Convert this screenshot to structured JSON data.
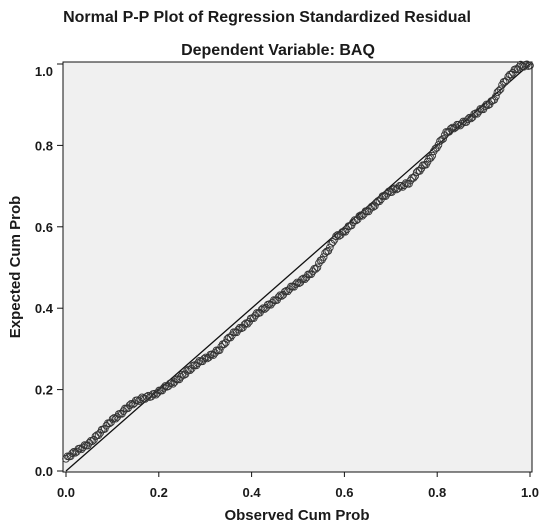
{
  "chart_data": {
    "type": "scatter",
    "title": "Normal P-P Plot of Regression Standardized Residual",
    "subtitle": "Dependent Variable: BAQ",
    "xlabel": "Observed Cum Prob",
    "ylabel": "Expected Cum Prob",
    "xlim": [
      0,
      1
    ],
    "ylim": [
      0,
      1
    ],
    "x_ticks": [
      "0.0",
      "0.2",
      "0.4",
      "0.6",
      "0.8",
      "1.0"
    ],
    "y_ticks": [
      "0.0",
      "0.2",
      "0.4",
      "0.6",
      "0.8",
      "1.0"
    ],
    "grid": false,
    "legend": "none",
    "reference_line": {
      "from": [
        0,
        0
      ],
      "to": [
        1,
        1
      ]
    },
    "colors": {
      "plot_background": "#f0f0f0",
      "marker": "#333333",
      "line": "#111111"
    },
    "curve_points": [
      [
        0.0,
        0.03
      ],
      [
        0.02,
        0.045
      ],
      [
        0.05,
        0.07
      ],
      [
        0.08,
        0.1
      ],
      [
        0.1,
        0.125
      ],
      [
        0.13,
        0.155
      ],
      [
        0.16,
        0.175
      ],
      [
        0.2,
        0.195
      ],
      [
        0.23,
        0.215
      ],
      [
        0.26,
        0.245
      ],
      [
        0.3,
        0.275
      ],
      [
        0.33,
        0.3
      ],
      [
        0.36,
        0.335
      ],
      [
        0.4,
        0.375
      ],
      [
        0.43,
        0.4
      ],
      [
        0.46,
        0.43
      ],
      [
        0.5,
        0.46
      ],
      [
        0.54,
        0.5
      ],
      [
        0.57,
        0.55
      ],
      [
        0.58,
        0.575
      ],
      [
        0.6,
        0.59
      ],
      [
        0.64,
        0.63
      ],
      [
        0.68,
        0.67
      ],
      [
        0.72,
        0.7
      ],
      [
        0.74,
        0.71
      ],
      [
        0.78,
        0.76
      ],
      [
        0.8,
        0.8
      ],
      [
        0.82,
        0.83
      ],
      [
        0.86,
        0.86
      ],
      [
        0.9,
        0.89
      ],
      [
        0.92,
        0.91
      ],
      [
        0.94,
        0.95
      ],
      [
        0.96,
        0.975
      ],
      [
        0.98,
        0.995
      ],
      [
        1.0,
        1.0
      ]
    ],
    "point_count": 300
  }
}
